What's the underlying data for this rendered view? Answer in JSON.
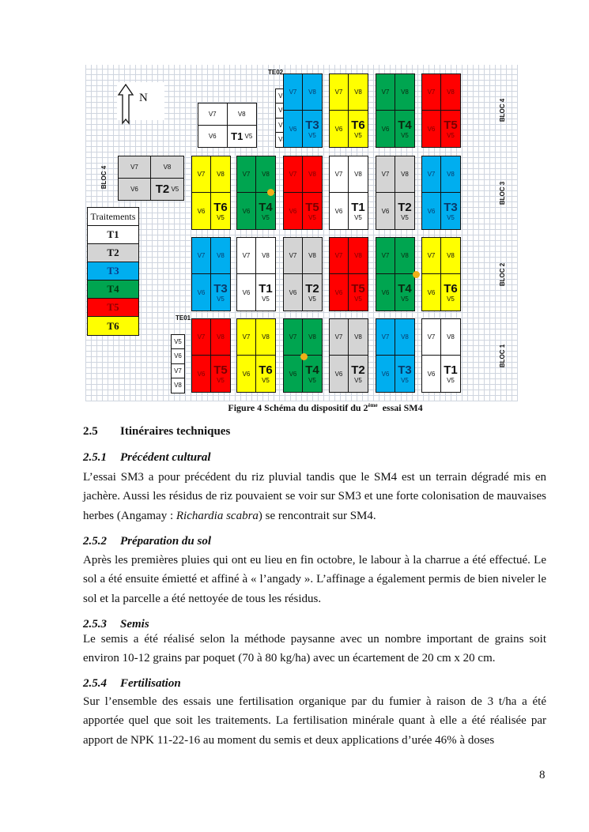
{
  "figure": {
    "caption_prefix": "Figure 4 Schéma du dispositif du 2",
    "caption_sup": "ème",
    "caption_suffix": "  essai SM4",
    "north_label": "N",
    "te02_label": "TE02",
    "te01_label": "TE01",
    "te_cells": [
      "V5",
      "V6",
      "V7",
      "V8"
    ],
    "variety_labels": {
      "v5": "V5",
      "v6": "V6",
      "v7": "V7",
      "v8": "V8"
    },
    "bloc_labels": {
      "bloc1": "BLOC 1",
      "bloc2": "BLOC 2",
      "bloc3": "BLOC 3",
      "bloc4": "BLOC 4"
    },
    "treatment_colors": {
      "T1": "#ffffff",
      "T2": "#d4d4d4",
      "T3": "#00aeef",
      "T4": "#00a550",
      "T5": "#ff0000",
      "T6": "#ffff00"
    },
    "blocs": [
      {
        "name": "BLOC 4",
        "plots": [
          null,
          null,
          "T3",
          "T6",
          "T4",
          "T5"
        ]
      },
      {
        "name": "BLOC 3",
        "plots": [
          "T6",
          "T4",
          "T5",
          "T1",
          "T2",
          "T3"
        ]
      },
      {
        "name": "BLOC 2",
        "plots": [
          "T3",
          "T1",
          "T2",
          "T5",
          "T4",
          "T6"
        ]
      },
      {
        "name": "BLOC 1",
        "plots": [
          "T5",
          "T6",
          "T4",
          "T2",
          "T3",
          "T1"
        ]
      }
    ],
    "extra_plots": [
      {
        "treatment": "T1"
      },
      {
        "treatment": "T2",
        "bloc": "BLOC 4"
      }
    ],
    "legend": {
      "title": "Traitements",
      "items": [
        "T1",
        "T2",
        "T3",
        "T4",
        "T5",
        "T6"
      ]
    }
  },
  "sections": [
    {
      "num": "2.5",
      "title": "Itinéraires techniques"
    },
    {
      "num": "2.5.1",
      "title": "Précédent cultural",
      "p1": "L’essai SM3 a pour précédent du riz pluvial tandis que le SM4 est un terrain dégradé mis en jachère. Aussi les résidus de riz pouvaient se voir sur SM3 et une forte colonisation de mauvaises herbes (Angamay : ",
      "p_italic": "Richardia scabra",
      "p2": ") se rencontrait sur SM4."
    },
    {
      "num": "2.5.2",
      "title": "Préparation du sol",
      "p": "Après les premières pluies qui ont eu lieu en fin octobre, le labour à la charrue a été effectué. Le sol a été ensuite émietté et affiné à « l’angady ». L’affinage a également permis de bien niveler le sol et la parcelle a été nettoyée de tous les résidus."
    },
    {
      "num": "2.5.3",
      "title": "Semis",
      "p": "Le semis a été réalisé selon la méthode paysanne avec un nombre important de grains soit environ 10-12 grains par poquet (70 à 80 kg/ha) avec un écartement de 20 cm x 20 cm."
    },
    {
      "num": "2.5.4",
      "title": "Fertilisation",
      "p": "Sur l’ensemble des essais une fertilisation organique par du fumier à raison de 3 t/ha a été apportée quel que soit les traitements. La fertilisation minérale quant à elle a été réalisée par apport de NPK 11-22-16 au moment du semis et deux applications d’urée 46% à doses"
    }
  ],
  "page_number": "8"
}
